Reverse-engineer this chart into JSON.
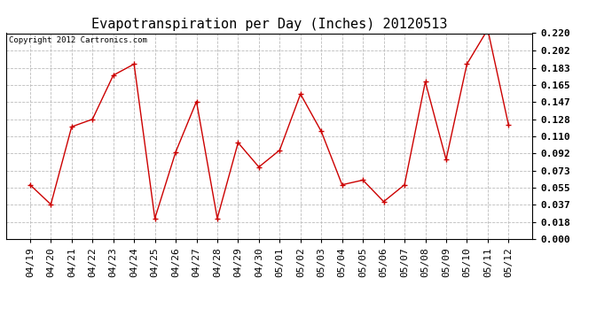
{
  "title": "Evapotranspiration per Day (Inches) 20120513",
  "copyright_text": "Copyright 2012 Cartronics.com",
  "x_labels": [
    "04/19",
    "04/20",
    "04/21",
    "04/22",
    "04/23",
    "04/24",
    "04/25",
    "04/26",
    "04/27",
    "04/28",
    "04/29",
    "04/30",
    "05/01",
    "05/02",
    "05/03",
    "05/04",
    "05/05",
    "05/06",
    "05/07",
    "05/08",
    "05/09",
    "05/10",
    "05/11",
    "05/12"
  ],
  "y_values": [
    0.058,
    0.037,
    0.12,
    0.128,
    0.175,
    0.187,
    0.022,
    0.093,
    0.147,
    0.022,
    0.103,
    0.077,
    0.095,
    0.155,
    0.115,
    0.058,
    0.063,
    0.04,
    0.058,
    0.168,
    0.085,
    0.187,
    0.224,
    0.122
  ],
  "line_color": "#cc0000",
  "marker": "+",
  "marker_size": 5,
  "ylim": [
    0.0,
    0.22
  ],
  "yticks": [
    0.0,
    0.018,
    0.037,
    0.055,
    0.073,
    0.092,
    0.11,
    0.128,
    0.147,
    0.165,
    0.183,
    0.202,
    0.22
  ],
  "grid_color": "#bbbbbb",
  "background_color": "#ffffff",
  "title_fontsize": 11,
  "copyright_fontsize": 6.5,
  "tick_fontsize": 8,
  "border_color": "#000000"
}
